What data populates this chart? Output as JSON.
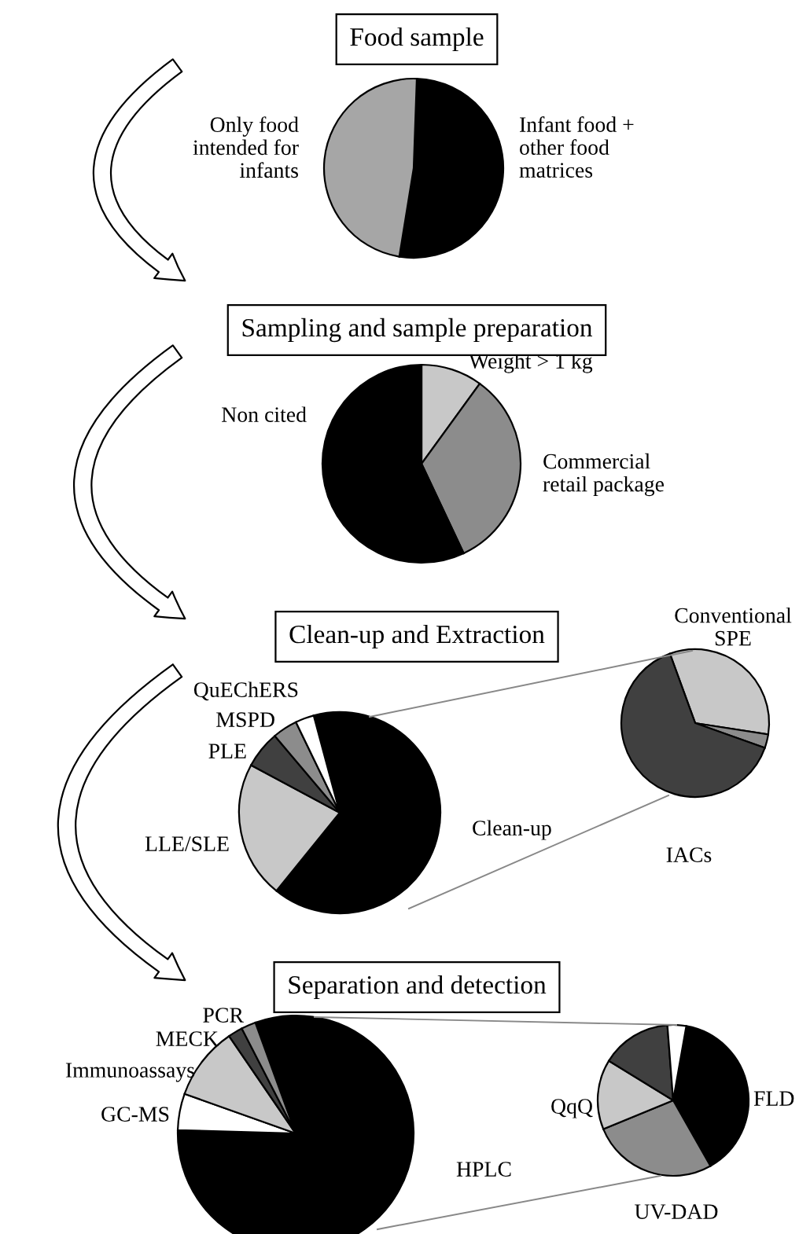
{
  "chart_data": [
    {
      "type": "pie",
      "title": "Food sample",
      "categories": [
        "Infant food +\nother food\nmatrices",
        "Only food\nintended for\ninfants"
      ],
      "values": [
        52,
        48
      ],
      "colors": [
        "#000000",
        "#a6a6a6"
      ]
    },
    {
      "type": "pie",
      "title": "Sampling and sample preparation",
      "categories": [
        "Weight > 1 kg",
        "Commercial\nretail package",
        "Non cited"
      ],
      "values": [
        10,
        33,
        57
      ],
      "colors": [
        "#c8c8c8",
        "#8c8c8c",
        "#000000"
      ]
    },
    {
      "type": "pie",
      "title": "Clean-up and Extraction",
      "categories": [
        "Clean-up",
        "LLE/SLE",
        "PLE",
        "MSPD",
        "QuEChERS"
      ],
      "values": [
        65,
        22,
        6,
        4,
        3
      ],
      "colors": [
        "#000000",
        "#c8c8c8",
        "#404040",
        "#8c8c8c",
        "#ffffff"
      ]
    },
    {
      "type": "pie",
      "categories": [
        "Conventional\nSPE",
        null,
        "IACs"
      ],
      "values": [
        33,
        3,
        64
      ],
      "colors": [
        "#c8c8c8",
        "#8c8c8c",
        "#404040"
      ]
    },
    {
      "type": "pie",
      "title": "Separation and detection",
      "categories": [
        "HPLC",
        "GC-MS",
        "Immunoassays",
        "MECK",
        "PCR"
      ],
      "values": [
        81,
        5,
        10,
        2,
        2
      ],
      "colors": [
        "#000000",
        "#ffffff",
        "#c8c8c8",
        "#404040",
        "#8c8c8c"
      ]
    },
    {
      "type": "pie",
      "categories": [
        "FLD",
        "UV-DAD",
        "QqQ",
        null,
        null
      ],
      "values": [
        39,
        27,
        15,
        15,
        4
      ],
      "colors": [
        "#000000",
        "#8c8c8c",
        "#c8c8c8",
        "#404040",
        "#ffffff"
      ]
    }
  ]
}
